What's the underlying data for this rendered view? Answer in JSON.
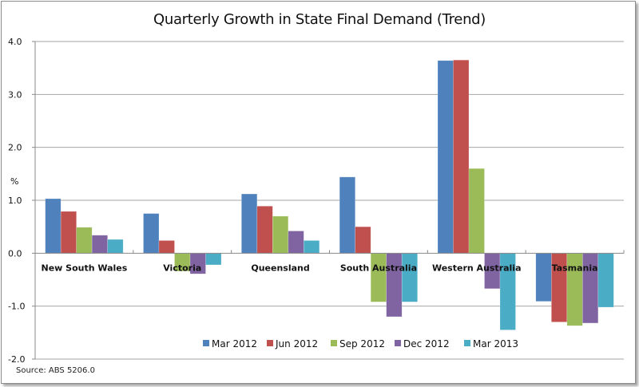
{
  "chart_data": {
    "type": "bar",
    "title": "Quarterly Growth in State Final Demand (Trend)",
    "ylabel": "%",
    "xlabel": "",
    "ylim": [
      -2.0,
      4.0
    ],
    "yticks": [
      "4.0",
      "3.0",
      "2.0",
      "1.0",
      "0.0",
      "-1.0",
      "-2.0"
    ],
    "ytick_values": [
      4,
      3,
      2,
      1,
      0,
      -1,
      -2
    ],
    "grid": true,
    "legend_position": "bottom",
    "categories": [
      "New South Wales",
      "Victoria",
      "Queensland",
      "South Australia",
      "Western Australia",
      "Tasmania"
    ],
    "series": [
      {
        "name": "Mar 2012",
        "color": "#4f81bd",
        "values": [
          1.03,
          0.75,
          1.12,
          1.44,
          3.64,
          -0.91
        ]
      },
      {
        "name": "Jun 2012",
        "color": "#c0504d",
        "values": [
          0.79,
          0.24,
          0.89,
          0.5,
          3.65,
          -1.3
        ]
      },
      {
        "name": "Sep 2012",
        "color": "#9bbb59",
        "values": [
          0.49,
          -0.34,
          0.7,
          -0.92,
          1.6,
          -1.37
        ]
      },
      {
        "name": "Dec 2012",
        "color": "#8064a2",
        "values": [
          0.34,
          -0.39,
          0.42,
          -1.2,
          -0.67,
          -1.32
        ]
      },
      {
        "name": "Mar 2013",
        "color": "#4bacc6",
        "values": [
          0.26,
          -0.22,
          0.24,
          -0.92,
          -1.45,
          -1.02
        ]
      }
    ],
    "source": "Source: ABS 5206.0"
  }
}
